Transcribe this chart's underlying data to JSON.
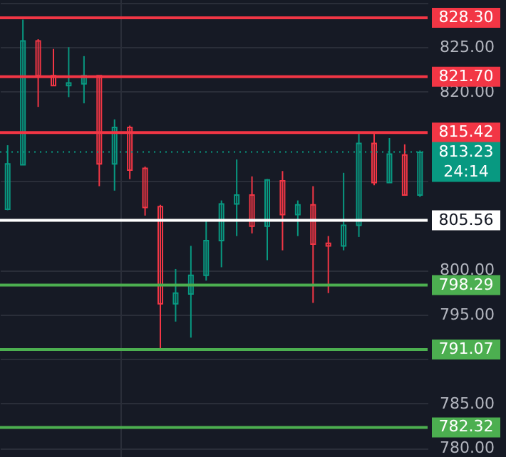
{
  "chart_data": {
    "type": "candlestick",
    "categories": [
      null,
      null,
      null,
      null,
      null,
      null,
      null,
      null,
      null,
      null,
      null,
      null,
      null,
      null,
      null,
      null,
      null,
      null,
      null,
      null,
      null,
      null,
      null,
      null,
      null,
      null,
      null,
      null
    ],
    "ohlc": [
      [
        806.8,
        814.0,
        806.7,
        811.9
      ],
      [
        811.8,
        828.1,
        811.8,
        825.7
      ],
      [
        825.7,
        825.9,
        818.3,
        821.8
      ],
      [
        821.8,
        824.8,
        820.7,
        820.7
      ],
      [
        820.7,
        825.0,
        819.4,
        821.0
      ],
      [
        820.9,
        824.0,
        818.7,
        821.8
      ],
      [
        821.8,
        821.8,
        809.4,
        811.9
      ],
      [
        811.9,
        816.9,
        808.9,
        816.0
      ],
      [
        816.0,
        816.2,
        810.2,
        811.2
      ],
      [
        811.4,
        811.6,
        806.1,
        807.0
      ],
      [
        807.1,
        807.3,
        791.0,
        796.2
      ],
      [
        796.2,
        800.1,
        794.2,
        797.4
      ],
      [
        797.3,
        802.7,
        792.4,
        799.4
      ],
      [
        799.4,
        805.5,
        798.8,
        803.3
      ],
      [
        803.3,
        807.8,
        800.3,
        807.4
      ],
      [
        807.4,
        812.4,
        803.8,
        808.4
      ],
      [
        808.4,
        810.5,
        804.1,
        804.9
      ],
      [
        804.9,
        810.2,
        801.1,
        810.1
      ],
      [
        810.0,
        811.1,
        802.2,
        806.2
      ],
      [
        806.2,
        807.8,
        803.8,
        807.3
      ],
      [
        807.3,
        809.4,
        796.3,
        802.9
      ],
      [
        803.0,
        803.8,
        797.4,
        802.7
      ],
      [
        802.7,
        810.9,
        802.2,
        805.0
      ],
      [
        805.0,
        815.5,
        803.7,
        814.2
      ],
      [
        814.2,
        815.3,
        809.5,
        809.8
      ],
      [
        809.8,
        814.8,
        809.8,
        813.0
      ],
      [
        812.9,
        814.1,
        808.4,
        808.4
      ],
      [
        808.4,
        813.4,
        808.2,
        813.2
      ]
    ],
    "ylim": [
      779,
      830.3
    ],
    "yticks": [
      {
        "value": 780,
        "label": "780.00"
      },
      {
        "value": 785,
        "label": "785.00"
      },
      {
        "value": 790,
        "label": null
      },
      {
        "value": 795,
        "label": "795.00"
      },
      {
        "value": 800,
        "label": "800.00"
      },
      {
        "value": 810,
        "label": null
      },
      {
        "value": 820,
        "label": "820.00"
      },
      {
        "value": 825,
        "label": "825.00"
      },
      {
        "value": 830,
        "label": null
      }
    ],
    "tick_labels": "y",
    "grid": true,
    "ref_lines": [
      {
        "axis": "y",
        "value": 828.3,
        "label": "828.30",
        "color": "#f23645"
      },
      {
        "axis": "y",
        "value": 821.7,
        "label": "821.70",
        "color": "#f23645"
      },
      {
        "axis": "y",
        "value": 815.42,
        "label": "815.42",
        "color": "#f23645"
      },
      {
        "axis": "y",
        "value": 813.23,
        "label": "813.23",
        "color": "#089981",
        "line_style": "dotted"
      },
      {
        "axis": "y",
        "value": 805.56,
        "label": "805.56",
        "color": "#ffffff"
      },
      {
        "axis": "y",
        "value": 798.29,
        "label": "798.29",
        "color": "#4caf50"
      },
      {
        "axis": "y",
        "value": 791.07,
        "label": "791.07",
        "color": "#4caf50"
      },
      {
        "axis": "y",
        "value": 782.32,
        "label": "782.32",
        "color": "#4caf50"
      }
    ],
    "annotations": [
      "24:14"
    ]
  }
}
